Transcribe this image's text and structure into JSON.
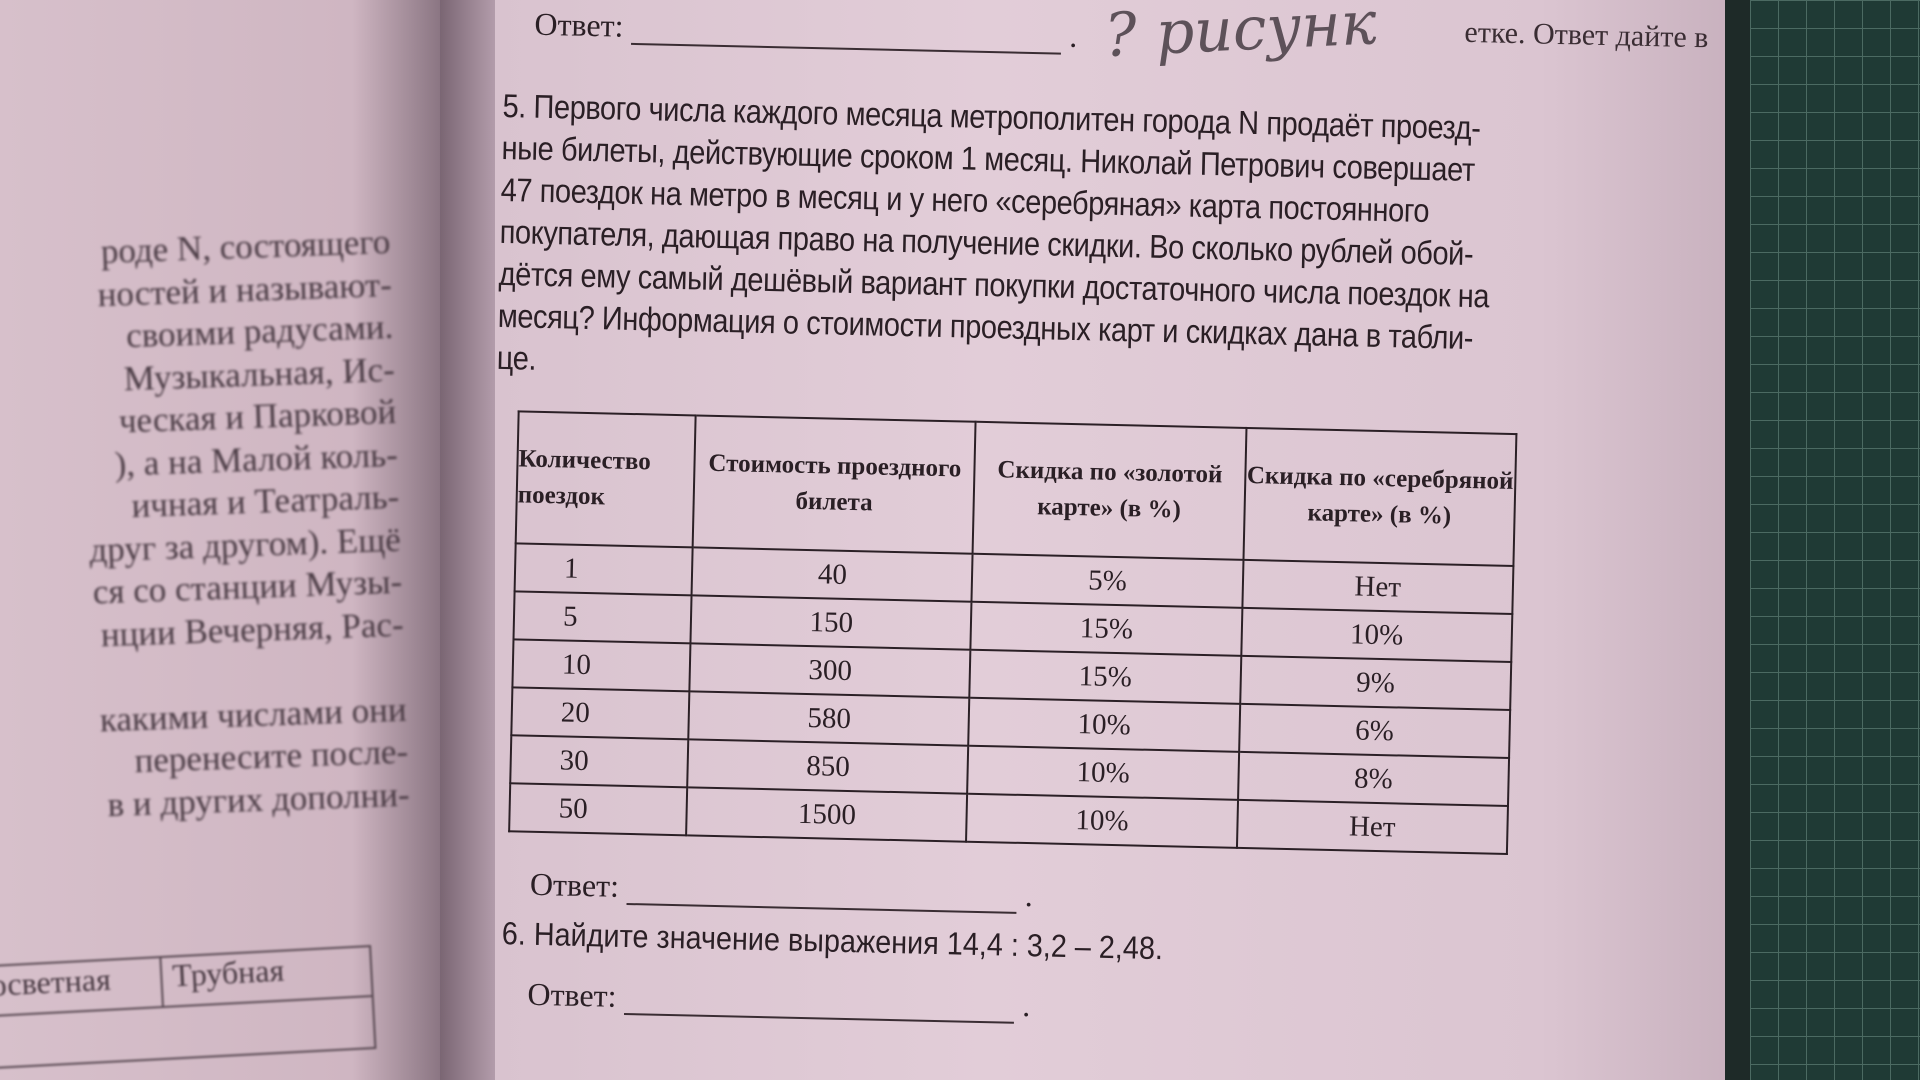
{
  "left_page": {
    "lines": [
      "роде N, состоящего",
      "ностей и называют-",
      "своими радусами.",
      "Музыкальная, Ис-",
      "ческая и Парковой",
      "), а на Малой коль-",
      "ичная и Театраль-",
      "друг за другом). Ещё",
      "ся со станции Музы-",
      "нции Вечерняя, Рас-",
      "",
      "какими числами они",
      "перенесите после-",
      "в и других дополни-"
    ],
    "table_cells": [
      "осветная",
      "Трубная"
    ]
  },
  "top": {
    "answer_label": "Ответ:",
    "corner_text": "етке. Ответ дайте в",
    "handwriting": "? рисунк"
  },
  "task5": {
    "lines": [
      "5. Первого числа каждого месяца метрополитен города N продаёт проезд-",
      "ные билеты, действующие сроком 1 месяц. Николай Петрович совершает",
      "47 поездок на метро в месяц и у него «серебряная» карта постоянного",
      "покупателя, дающая право на получение скидки. Во сколько рублей обой-",
      "дётся ему самый дешёвый вариант покупки достаточного числа поездок на",
      "месяц? Информация о стоимости проездных карт и скидках дана в табли-",
      "це."
    ]
  },
  "table": {
    "headers": [
      "Количество поездок",
      "Стоимость проездного билета",
      "Скидка по «золотой карте» (в %)",
      "Скидка по «серебряной карте» (в %)"
    ],
    "rows": [
      [
        "1",
        "40",
        "5%",
        "Нет"
      ],
      [
        "5",
        "150",
        "15%",
        "10%"
      ],
      [
        "10",
        "300",
        "15%",
        "9%"
      ],
      [
        "20",
        "580",
        "10%",
        "6%"
      ],
      [
        "30",
        "850",
        "10%",
        "8%"
      ],
      [
        "50",
        "1500",
        "10%",
        "Нет"
      ]
    ]
  },
  "answer2_label": "Ответ:",
  "task6": "6. Найдите значение выражения 14,4 : 3,2 – 2,48.",
  "answer3_label": "Ответ:"
}
